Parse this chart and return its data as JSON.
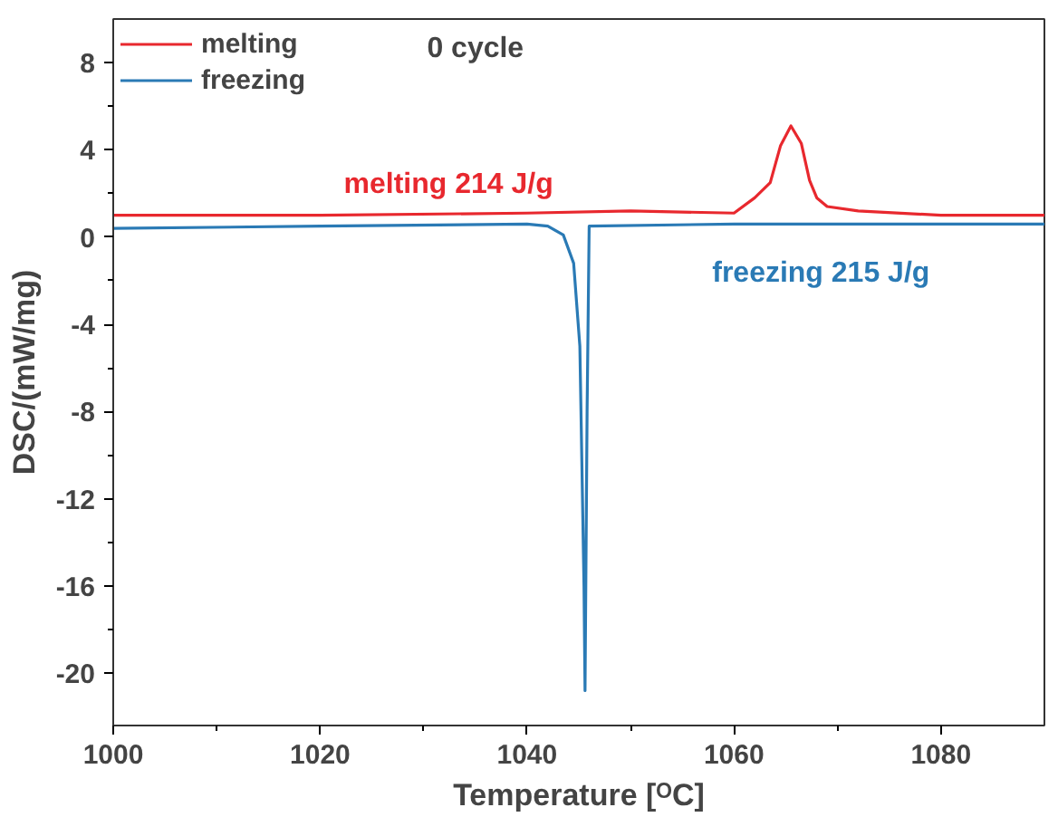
{
  "chart_data": {
    "type": "line",
    "title": "0 cycle",
    "xlabel": "Temperature [ᴼC]",
    "ylabel": "DSC/(mW/mg)",
    "xlim": [
      1000,
      1090
    ],
    "ylim": [
      -22.4,
      10
    ],
    "xticks": [
      1000,
      1020,
      1040,
      1060,
      1080
    ],
    "yticks": [
      -20,
      -16,
      -12,
      -8,
      -4,
      0,
      4,
      8
    ],
    "legend": "top left",
    "grid": false,
    "line_style": "solid",
    "marker": "none",
    "series": [
      {
        "name": "melting",
        "color": "#e8282e",
        "x": [
          1000,
          1020,
          1040,
          1050,
          1060,
          1062,
          1063.5,
          1064.5,
          1065.5,
          1066.5,
          1067.3,
          1068,
          1069,
          1072,
          1080,
          1090
        ],
        "values": [
          1.0,
          1.0,
          1.1,
          1.2,
          1.1,
          1.8,
          2.5,
          4.2,
          5.1,
          4.3,
          2.6,
          1.8,
          1.4,
          1.2,
          1.0,
          1.0
        ]
      },
      {
        "name": "freezing",
        "color": "#2a7ab5",
        "x": [
          1000,
          1020,
          1040,
          1042,
          1043.5,
          1044.5,
          1045.1,
          1045.5,
          1045.6,
          1045.8,
          1046,
          1060,
          1090
        ],
        "values": [
          0.4,
          0.5,
          0.6,
          0.5,
          0.1,
          -1.2,
          -5,
          -16,
          -20.8,
          -8,
          0.5,
          0.6,
          0.6
        ]
      }
    ],
    "annotations": [
      "melting 214 J/g",
      "freezing 215 J/g"
    ]
  }
}
